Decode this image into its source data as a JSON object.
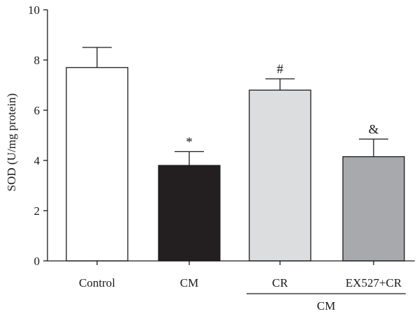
{
  "chart_data": {
    "type": "bar",
    "categories": [
      "Control",
      "CM",
      "CR",
      "EX527+CR"
    ],
    "values": [
      7.7,
      3.8,
      6.8,
      4.15
    ],
    "errors": [
      0.8,
      0.55,
      0.45,
      0.7
    ],
    "annotations": [
      "",
      "*",
      "#",
      "&"
    ],
    "bar_colors": [
      "#ffffff",
      "#231f20",
      "#dcddde",
      "#a7a9ac"
    ],
    "ylabel": "SOD (U/mg protein)",
    "xlabel": "",
    "ylim": [
      0,
      10
    ],
    "yticks": [
      0,
      2,
      4,
      6,
      8,
      10
    ],
    "group_label": {
      "text": "CM",
      "categories": [
        "CR",
        "EX527+CR"
      ]
    },
    "grid": false,
    "legend": "none"
  }
}
